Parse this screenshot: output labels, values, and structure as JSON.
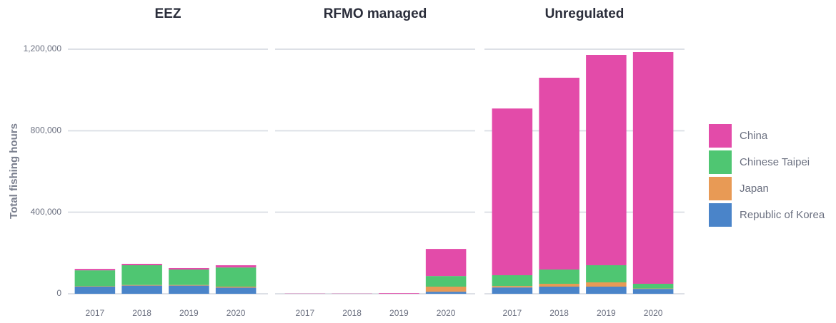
{
  "chart_data": [
    {
      "type": "bar",
      "title": "EEZ",
      "y_label": "Total fishing hours",
      "categories": [
        "2017",
        "2018",
        "2019",
        "2020"
      ],
      "series": [
        {
          "name": "China",
          "color": "#e34ba9",
          "values": [
            7000,
            7000,
            7000,
            11000
          ]
        },
        {
          "name": "Chinese Taipei",
          "color": "#4fc672",
          "values": [
            78000,
            97000,
            76000,
            94000
          ]
        },
        {
          "name": "Japan",
          "color": "#e89a55",
          "values": [
            2000,
            3000,
            3000,
            5000
          ]
        },
        {
          "name": "Republic of Korea",
          "color": "#4a84c9",
          "values": [
            35000,
            40000,
            40000,
            30000
          ]
        }
      ],
      "ylim": [
        0,
        1200000
      ],
      "yticks": [
        0,
        {
          "value": 400000,
          "label": "400,000"
        },
        {
          "value": 800000,
          "label": "800,000"
        },
        {
          "value": 1200000,
          "label": "1,200,000"
        }
      ],
      "grid": true
    },
    {
      "type": "bar",
      "title": "RFMO managed",
      "categories": [
        "2017",
        "2018",
        "2019",
        "2020"
      ],
      "series": [
        {
          "name": "China",
          "color": "#e34ba9",
          "values": [
            1000,
            1000,
            3000,
            133000
          ]
        },
        {
          "name": "Chinese Taipei",
          "color": "#4fc672",
          "values": [
            0,
            0,
            0,
            52000
          ]
        },
        {
          "name": "Japan",
          "color": "#e89a55",
          "values": [
            0,
            0,
            0,
            25000
          ]
        },
        {
          "name": "Republic of Korea",
          "color": "#4a84c9",
          "values": [
            0,
            0,
            0,
            10000
          ]
        }
      ]
    },
    {
      "type": "bar",
      "title": "Unregulated",
      "categories": [
        "2017",
        "2018",
        "2019",
        "2020"
      ],
      "series": [
        {
          "name": "China",
          "color": "#e34ba9",
          "values": [
            818000,
            941000,
            1032000,
            1137000
          ]
        },
        {
          "name": "Chinese Taipei",
          "color": "#4fc672",
          "values": [
            53000,
            70000,
            84000,
            23000
          ]
        },
        {
          "name": "Japan",
          "color": "#e89a55",
          "values": [
            7000,
            14000,
            21000,
            2000
          ]
        },
        {
          "name": "Republic of Korea",
          "color": "#4a84c9",
          "values": [
            31000,
            35000,
            35000,
            24000
          ]
        }
      ]
    }
  ]
}
